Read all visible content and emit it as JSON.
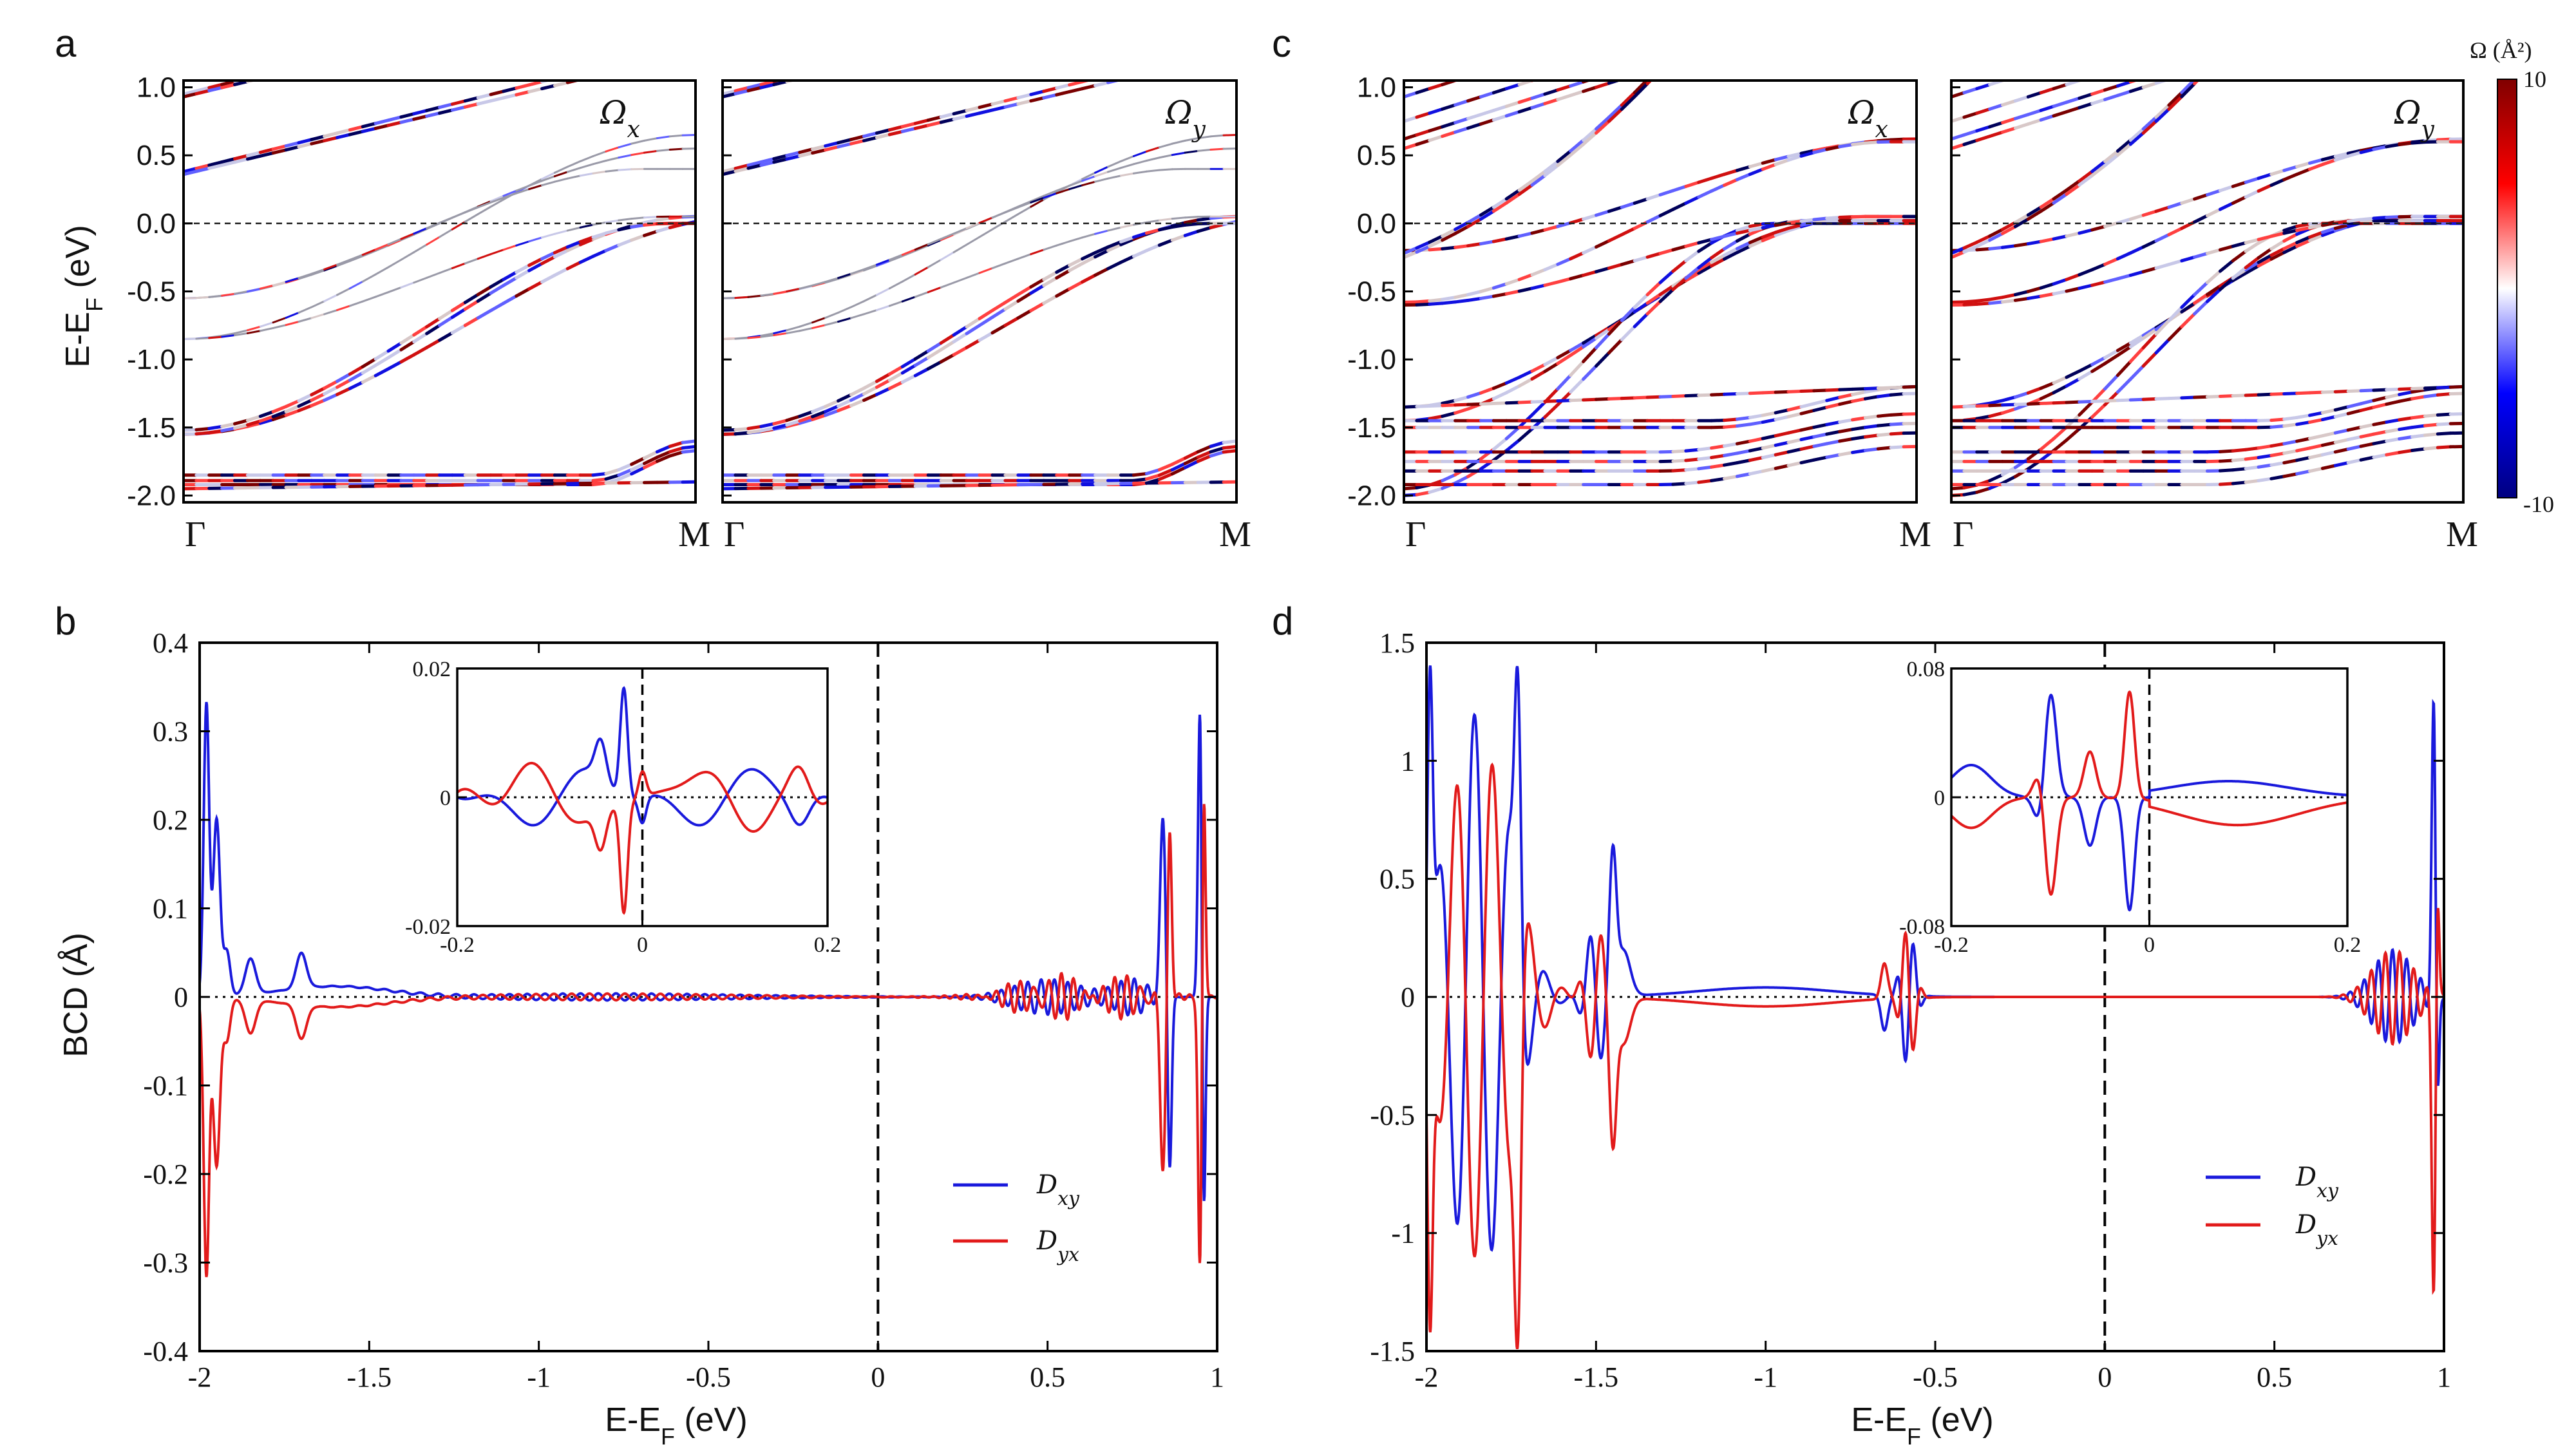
{
  "panels": {
    "a": "a",
    "b": "b",
    "c": "c",
    "d": "d"
  },
  "band_panels": {
    "ylabel": "E-E",
    "ylabel_sub": "F",
    "ylabel_unit": " (eV)",
    "yticks": [
      "1.0",
      "0.5",
      "0.0",
      "-0.5",
      "-1.0",
      "-1.5",
      "-2.0"
    ],
    "ytick_values": [
      1.0,
      0.5,
      0.0,
      -0.5,
      -1.0,
      -1.5,
      -2.0
    ],
    "ylim": [
      -2.05,
      1.05
    ],
    "kpath": [
      "Γ",
      "M"
    ],
    "omega_x": "Ω",
    "omega_x_sub": "x",
    "omega_y": "Ω",
    "omega_y_sub": "y"
  },
  "colorbar": {
    "title": "Ω (Å²)",
    "max_label": "10",
    "min_label": "-10",
    "colors": [
      "#000080",
      "#0000ff",
      "#ffffff",
      "#ff0000",
      "#800000"
    ]
  },
  "colors": {
    "dxy": "#1a1adc",
    "dyx": "#e21b1b"
  },
  "chart_data": [
    {
      "id": "b",
      "type": "line",
      "xlabel": "E-E",
      "xlabel_sub": "F",
      "xlabel_unit": " (eV)",
      "ylabel": "BCD (Å)",
      "xlim": [
        -2,
        1
      ],
      "ylim": [
        -0.4,
        0.4
      ],
      "xticks": [
        -2,
        -1.5,
        -1,
        -0.5,
        0,
        0.5,
        1
      ],
      "xtick_labels": [
        "-2",
        "-1.5",
        "-1",
        "-0.5",
        "0",
        "0.5",
        "1"
      ],
      "yticks": [
        0.4,
        0.3,
        0.2,
        0.1,
        0,
        -0.1,
        -0.2,
        -0.3,
        -0.4
      ],
      "ytick_labels": [
        "0.4",
        "0.3",
        "0.2",
        "0.1",
        "0",
        "-0.1",
        "-0.2",
        "-0.3",
        "-0.4"
      ],
      "legend": [
        "D",
        "D"
      ],
      "legend_subs": [
        "xy",
        "yx"
      ],
      "legend_position": "lower-right",
      "series_names": [
        "Dxy",
        "Dyx"
      ],
      "inset": {
        "xlim": [
          -0.2,
          0.2
        ],
        "ylim": [
          -0.02,
          0.02
        ],
        "xtick_labels": [
          "-0.2",
          "0",
          "0.2"
        ],
        "ytick_labels": [
          "0.02",
          "0",
          "-0.02"
        ]
      }
    },
    {
      "id": "d",
      "type": "line",
      "xlabel": "E-E",
      "xlabel_sub": "F",
      "xlabel_unit": " (eV)",
      "ylabel": "",
      "xlim": [
        -2,
        1
      ],
      "ylim": [
        -1.5,
        1.5
      ],
      "xticks": [
        -2,
        -1.5,
        -1,
        -0.5,
        0,
        0.5,
        1
      ],
      "xtick_labels": [
        "-2",
        "-1.5",
        "-1",
        "-0.5",
        "0",
        "0.5",
        "1"
      ],
      "yticks": [
        1.5,
        1,
        0.5,
        0,
        -0.5,
        -1,
        -1.5
      ],
      "ytick_labels": [
        "1.5",
        "1",
        "0.5",
        "0",
        "-0.5",
        "-1",
        "-1.5"
      ],
      "legend": [
        "D",
        "D"
      ],
      "legend_subs": [
        "xy",
        "yx"
      ],
      "legend_position": "lower-right",
      "series_names": [
        "Dxy",
        "Dyx"
      ],
      "inset": {
        "xlim": [
          -0.2,
          0.2
        ],
        "ylim": [
          -0.08,
          0.08
        ],
        "xtick_labels": [
          "-0.2",
          "0",
          "0.2"
        ],
        "ytick_labels": [
          "0.08",
          "0",
          "-0.08"
        ]
      }
    }
  ]
}
